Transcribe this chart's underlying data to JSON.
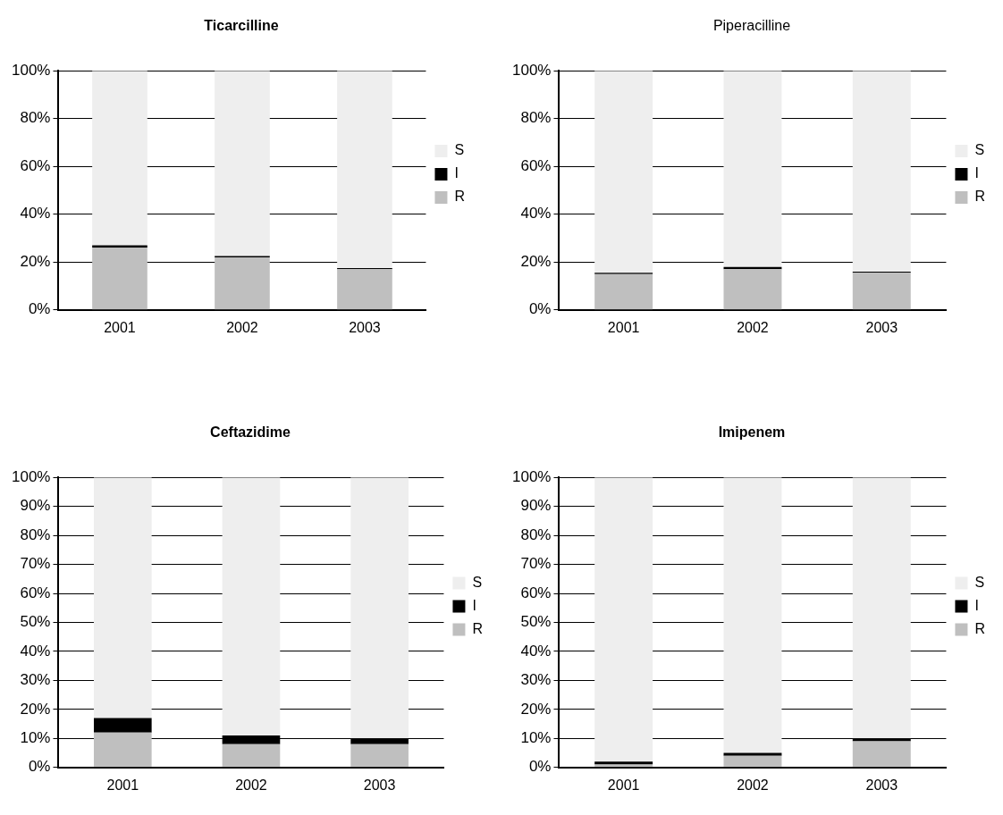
{
  "chart_data": [
    {
      "type": "bar",
      "title": "Ticarcilline",
      "categories": [
        "2001",
        "2002",
        "2003"
      ],
      "stacked": true,
      "ylim": [
        0,
        100
      ],
      "yticks": [
        {
          "value": 0,
          "label": "0%"
        },
        {
          "value": 20,
          "label": "20%"
        },
        {
          "value": 40,
          "label": "40%"
        },
        {
          "value": 60,
          "label": "60%"
        },
        {
          "value": 80,
          "label": "80%"
        },
        {
          "value": 100,
          "label": "100%"
        }
      ],
      "grid": "y",
      "legend": "right",
      "series": [
        {
          "name": "R",
          "color": "#bfbfbf",
          "values": [
            26,
            22,
            17
          ]
        },
        {
          "name": "I",
          "color": "#000000",
          "values": [
            1,
            0.5,
            0.5
          ]
        },
        {
          "name": "S",
          "color": "#eeeeee",
          "values": [
            73,
            77.5,
            82.5
          ]
        }
      ]
    },
    {
      "type": "bar",
      "title": "Piperacilline",
      "categories": [
        "2001",
        "2002",
        "2003"
      ],
      "stacked": true,
      "ylim": [
        0,
        100
      ],
      "yticks": [
        {
          "value": 0,
          "label": "0%"
        },
        {
          "value": 20,
          "label": "20%"
        },
        {
          "value": 40,
          "label": "40%"
        },
        {
          "value": 60,
          "label": "60%"
        },
        {
          "value": 80,
          "label": "80%"
        },
        {
          "value": 100,
          "label": "100%"
        }
      ],
      "grid": "y",
      "legend": "right",
      "series": [
        {
          "name": "R",
          "color": "#bfbfbf",
          "values": [
            15,
            17,
            15.5
          ]
        },
        {
          "name": "I",
          "color": "#000000",
          "values": [
            0.5,
            1,
            0.5
          ]
        },
        {
          "name": "S",
          "color": "#eeeeee",
          "values": [
            84.5,
            82,
            84
          ]
        }
      ]
    },
    {
      "type": "bar",
      "title": "Ceftazidime",
      "categories": [
        "2001",
        "2002",
        "2003"
      ],
      "stacked": true,
      "ylim": [
        0,
        100
      ],
      "yticks": [
        {
          "value": 0,
          "label": "0%"
        },
        {
          "value": 10,
          "label": "10%"
        },
        {
          "value": 20,
          "label": "20%"
        },
        {
          "value": 30,
          "label": "30%"
        },
        {
          "value": 40,
          "label": "40%"
        },
        {
          "value": 50,
          "label": "50%"
        },
        {
          "value": 60,
          "label": "60%"
        },
        {
          "value": 70,
          "label": "70%"
        },
        {
          "value": 80,
          "label": "80%"
        },
        {
          "value": 90,
          "label": "90%"
        },
        {
          "value": 100,
          "label": "100%"
        }
      ],
      "grid": "y",
      "legend": "right",
      "series": [
        {
          "name": "R",
          "color": "#bfbfbf",
          "values": [
            12,
            8,
            8
          ]
        },
        {
          "name": "I",
          "color": "#000000",
          "values": [
            5,
            3,
            2
          ]
        },
        {
          "name": "S",
          "color": "#eeeeee",
          "values": [
            83,
            89,
            90
          ]
        }
      ]
    },
    {
      "type": "bar",
      "title": "Imipenem",
      "categories": [
        "2001",
        "2002",
        "2003"
      ],
      "stacked": true,
      "ylim": [
        0,
        100
      ],
      "yticks": [
        {
          "value": 0,
          "label": "0%"
        },
        {
          "value": 10,
          "label": "10%"
        },
        {
          "value": 20,
          "label": "20%"
        },
        {
          "value": 30,
          "label": "30%"
        },
        {
          "value": 40,
          "label": "40%"
        },
        {
          "value": 50,
          "label": "50%"
        },
        {
          "value": 60,
          "label": "60%"
        },
        {
          "value": 70,
          "label": "70%"
        },
        {
          "value": 80,
          "label": "80%"
        },
        {
          "value": 90,
          "label": "90%"
        },
        {
          "value": 100,
          "label": "100%"
        }
      ],
      "grid": "y",
      "legend": "right",
      "series": [
        {
          "name": "R",
          "color": "#bfbfbf",
          "values": [
            1,
            4,
            9
          ]
        },
        {
          "name": "I",
          "color": "#000000",
          "values": [
            1,
            1,
            1
          ]
        },
        {
          "name": "S",
          "color": "#eeeeee",
          "values": [
            98,
            95,
            90
          ]
        }
      ]
    }
  ]
}
